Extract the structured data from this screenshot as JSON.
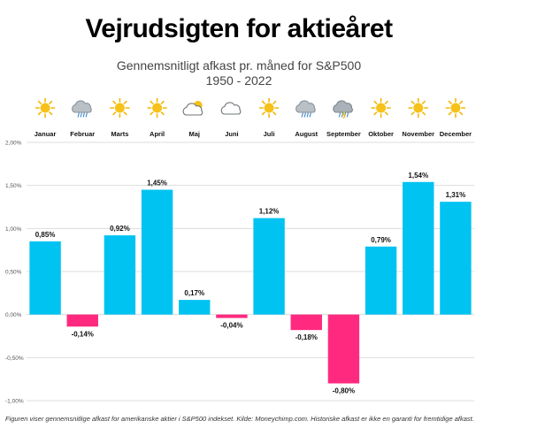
{
  "title": "Vejrudsigten for aktieåret",
  "subtitle": "Gennemsnitligt afkast pr. måned for S&P500",
  "subtitle2": "1950 - 2022",
  "footnote": "Figuren viser gennemsnitlige afkast for amerikanske aktier i S&P500 indekset. Kilde: Moneychimp.com. Historiske afkast er ikke en garanti for fremtidige afkast.",
  "colors": {
    "positive": "#00c3f2",
    "negative": "#ff2a7f",
    "grid": "#dddddd",
    "sun": "#f6c21a",
    "cloud": "#9aa3ab"
  },
  "chart_data": {
    "type": "bar",
    "categories": [
      "Januar",
      "Februar",
      "Marts",
      "April",
      "Maj",
      "Juni",
      "Juli",
      "August",
      "September",
      "Oktober",
      "November",
      "December"
    ],
    "values": [
      0.85,
      -0.14,
      0.92,
      1.45,
      0.17,
      -0.04,
      1.12,
      -0.18,
      -0.8,
      0.79,
      1.54,
      1.31
    ],
    "value_labels": [
      "0,85%",
      "-0,14%",
      "0,92%",
      "1,45%",
      "0,17%",
      "-0,04%",
      "1,12%",
      "-0,18%",
      "-0,80%",
      "0,79%",
      "1,54%",
      "1,31%"
    ],
    "weather_icons": [
      "sun-icon",
      "cloud-rain-icon",
      "sun-icon",
      "sun-icon",
      "sun-cloud-icon",
      "cloud-icon",
      "sun-icon",
      "cloud-rain-icon",
      "cloud-storm-icon",
      "sun-icon",
      "sun-icon",
      "sun-icon"
    ],
    "yticks": [
      -1.0,
      -0.5,
      0.0,
      0.5,
      1.0,
      1.5,
      2.0
    ],
    "ytick_labels": [
      "-1,00%",
      "-0,50%",
      "0,00%",
      "0,50%",
      "1,00%",
      "1,50%",
      "2,00%"
    ],
    "ylim": [
      -1.0,
      2.0
    ],
    "grid": true
  }
}
